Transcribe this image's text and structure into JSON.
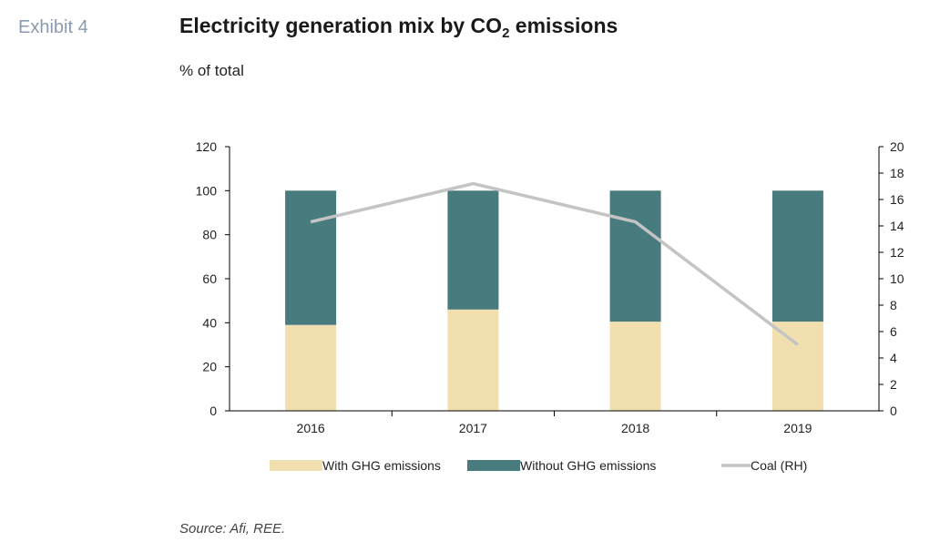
{
  "header": {
    "exhibit": "Exhibit 4",
    "title_main": "Electricity generation mix by CO",
    "title_sub": "2",
    "title_end": " emissions",
    "unit": "% of total"
  },
  "source": "Source: Afi, REE.",
  "colors": {
    "with_ghg": "#f2dfb0",
    "without_ghg": "#477b7d",
    "coal": "#c4c4c4",
    "axis": "#000000"
  },
  "chart_data": {
    "type": "bar",
    "stacked": true,
    "categories": [
      "2016",
      "2017",
      "2018",
      "2019"
    ],
    "series": [
      {
        "name": "With GHG emissions",
        "type": "bar",
        "axis": "left",
        "values": [
          39,
          46,
          40.5,
          40.5
        ]
      },
      {
        "name": "Without GHG emissions",
        "type": "bar",
        "axis": "left",
        "values": [
          61,
          54,
          59.5,
          59.5
        ]
      },
      {
        "name": "Coal (RH)",
        "type": "line",
        "axis": "right",
        "values": [
          14.3,
          17.2,
          14.3,
          5
        ]
      }
    ],
    "y_left": {
      "min": 0,
      "max": 120,
      "ticks": [
        0,
        20,
        40,
        60,
        80,
        100,
        120
      ]
    },
    "y_right": {
      "min": 0,
      "max": 20,
      "ticks": [
        0,
        2,
        4,
        6,
        8,
        10,
        12,
        14,
        16,
        18,
        20
      ]
    },
    "grid": false,
    "legend": "bottom"
  }
}
